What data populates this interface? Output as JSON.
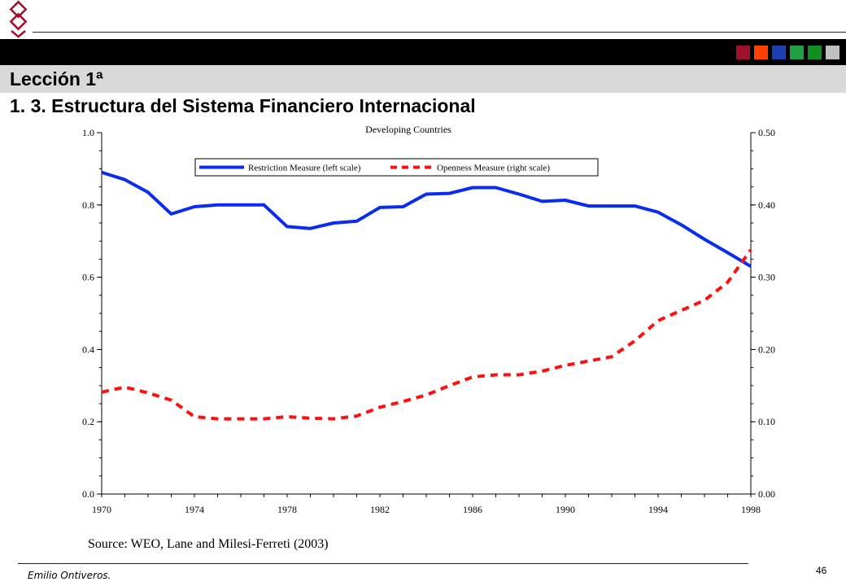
{
  "header": {
    "lesson": "Lección 1ª",
    "subtitle": "1. 3.  Estructura del Sistema Financiero Internacional",
    "squares": [
      {
        "color": "#a0102a"
      },
      {
        "color": "#ff4000"
      },
      {
        "color": "#1a40b0"
      },
      {
        "color": "#20a040"
      },
      {
        "color": "#10901e"
      },
      {
        "color": "#c0c0c0"
      }
    ]
  },
  "footer": {
    "author": "Emilio Ontiveros.",
    "page_number": "46"
  },
  "chart_data": {
    "type": "line",
    "title": "Developing Countries",
    "source": "Source: WEO, Lane and Milesi-Ferreti (2003)",
    "x": [
      1970,
      1971,
      1972,
      1973,
      1974,
      1975,
      1976,
      1977,
      1978,
      1979,
      1980,
      1981,
      1982,
      1983,
      1984,
      1985,
      1986,
      1987,
      1988,
      1989,
      1990,
      1991,
      1992,
      1993,
      1994,
      1995,
      1996,
      1997,
      1998
    ],
    "xlim": [
      1970,
      1998
    ],
    "x_ticks": [
      "1970",
      "1974",
      "1978",
      "1982",
      "1986",
      "1990",
      "1994",
      "1998"
    ],
    "left_axis": {
      "ylim": [
        0,
        1
      ],
      "ticks": [
        "0.0",
        "0.2",
        "0.4",
        "0.6",
        "0.8",
        "1.0"
      ]
    },
    "right_axis": {
      "ylim": [
        0,
        0.5
      ],
      "ticks": [
        "0.00",
        "0.10",
        "0.20",
        "0.30",
        "0.40",
        "0.50"
      ]
    },
    "legend_position": "top",
    "series": [
      {
        "name": "Restriction Measure (left scale)",
        "axis": "left",
        "style": "solid",
        "color": "#0a2cf0",
        "values": [
          0.89,
          0.87,
          0.835,
          0.775,
          0.795,
          0.8,
          0.8,
          0.8,
          0.74,
          0.735,
          0.75,
          0.755,
          0.793,
          0.795,
          0.83,
          0.832,
          0.848,
          0.848,
          0.83,
          0.81,
          0.813,
          0.797,
          0.797,
          0.797,
          0.78,
          0.745,
          0.705,
          0.668,
          0.63
        ]
      },
      {
        "name": "Openness Measure (right scale)",
        "axis": "right",
        "style": "dashed",
        "color": "#ff1010",
        "values": [
          0.141,
          0.148,
          0.14,
          0.13,
          0.107,
          0.104,
          0.104,
          0.104,
          0.107,
          0.105,
          0.104,
          0.108,
          0.12,
          0.128,
          0.137,
          0.15,
          0.162,
          0.165,
          0.165,
          0.17,
          0.178,
          0.184,
          0.19,
          0.212,
          0.24,
          0.254,
          0.268,
          0.293,
          0.338
        ]
      }
    ]
  }
}
